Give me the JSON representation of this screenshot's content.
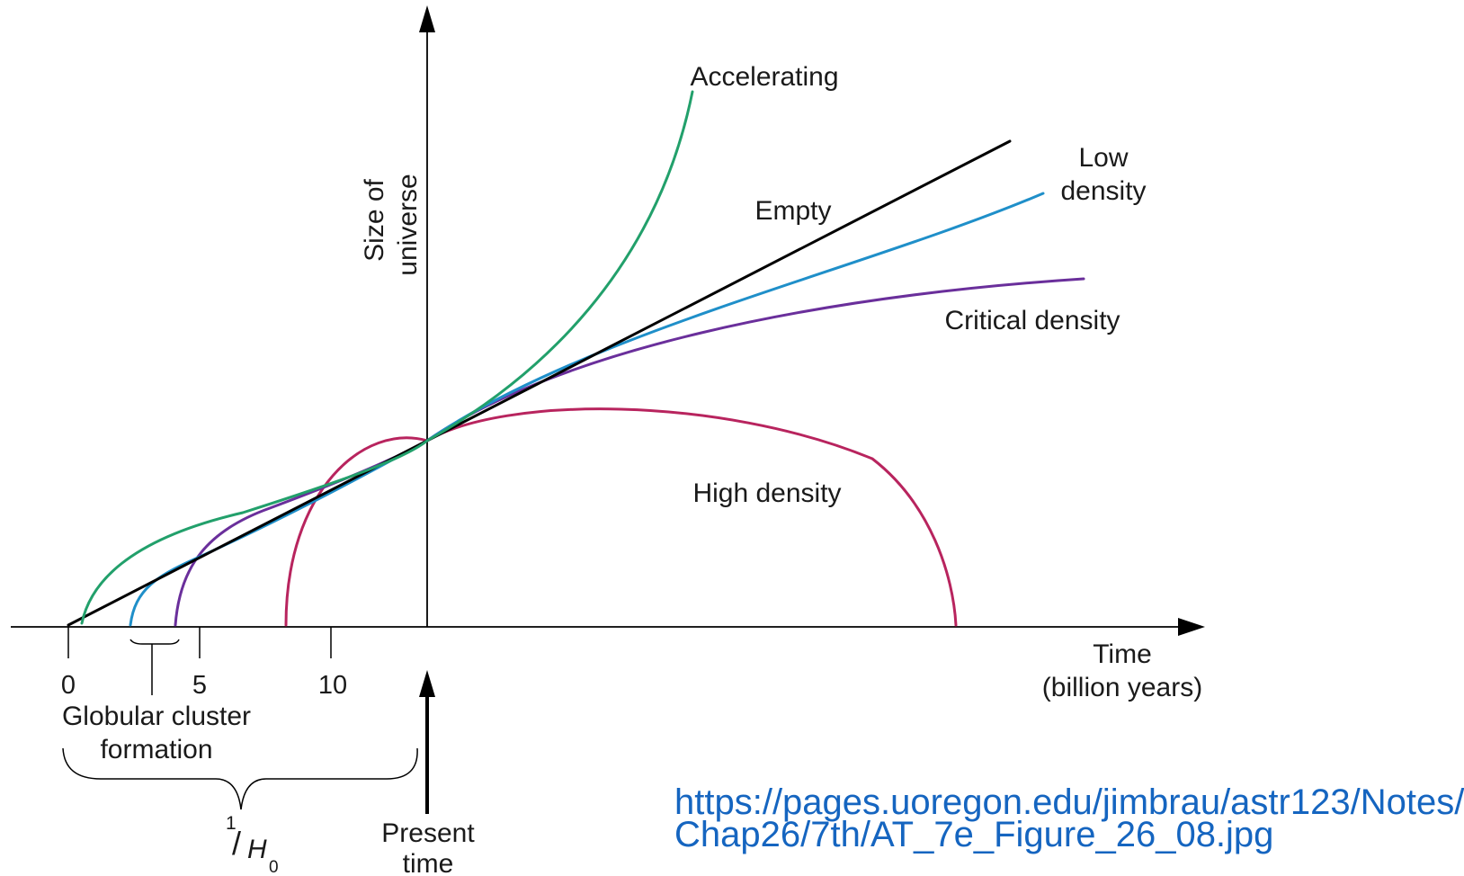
{
  "axes": {
    "y_label_line1": "Size of",
    "y_label_line2": "universe",
    "x_label_line1": "Time",
    "x_label_line2": "(billion years)"
  },
  "ticks": [
    "0",
    "5",
    "10"
  ],
  "curves": [
    {
      "name": "accelerating",
      "label": "Accelerating",
      "color": "#22a06b"
    },
    {
      "name": "empty",
      "label": "Empty",
      "color": "#000000"
    },
    {
      "name": "low-density",
      "label_line1": "Low",
      "label_line2": "density",
      "color": "#1f8fc9"
    },
    {
      "name": "critical-density",
      "label": "Critical density",
      "color": "#6a2f9b"
    },
    {
      "name": "high-density",
      "label": "High density",
      "color": "#b8245e"
    }
  ],
  "annotations": {
    "globular_line1": "Globular cluster",
    "globular_line2": "formation",
    "hubble_numerator": "1",
    "hubble_slash": "/",
    "hubble_H": "H",
    "hubble_sub": "0",
    "present_line1": "Present",
    "present_line2": "time"
  },
  "source": {
    "line1": "https://pages.uoregon.edu/jimbrau/astr123/Notes/",
    "line2": "Chap26/7th/AT_7e_Figure_26_08.jpg"
  }
}
